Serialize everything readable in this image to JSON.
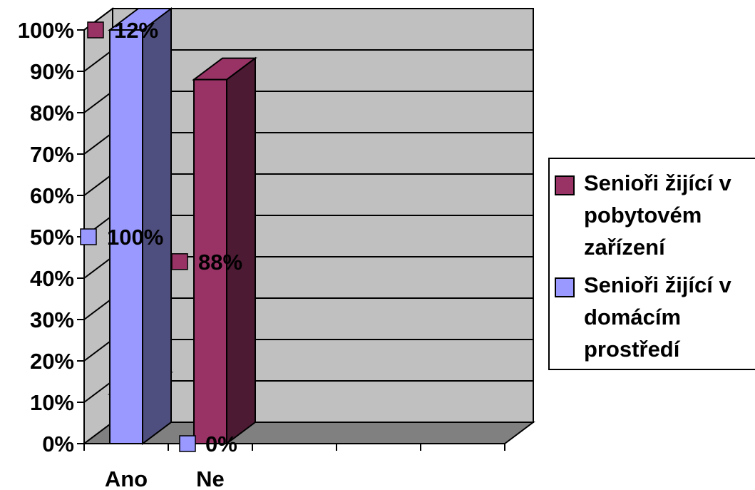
{
  "chart_data": {
    "type": "bar",
    "categories": [
      "Ano",
      "Ne"
    ],
    "series": [
      {
        "name": "Senioři žijící v domácím prostředí",
        "values": [
          100,
          0
        ],
        "color": "#9999ff",
        "side_color": "#4f4f7f"
      },
      {
        "name": "Senioři žijící v pobytovém zařízení",
        "values": [
          12,
          88
        ],
        "color": "#993366",
        "side_color": "#4c1a33"
      }
    ],
    "legend_lines": [
      [
        "Senioři žijící v",
        "pobytovém",
        "zařízení"
      ],
      [
        "Senioři žijící v",
        "domácím",
        "prostředí"
      ]
    ],
    "y_ticks": [
      "0%",
      "10%",
      "20%",
      "30%",
      "40%",
      "50%",
      "60%",
      "70%",
      "80%",
      "90%",
      "100%"
    ],
    "ylim": [
      0,
      100
    ],
    "data_labels": {
      "Ano": [
        "100%",
        "12%"
      ],
      "Ne": [
        "0%",
        "88%"
      ]
    },
    "title": "",
    "xlabel": "",
    "ylabel": "",
    "grid": true,
    "legend": "right",
    "colors": {
      "wall": "#c0c0c0",
      "floor": "#808080"
    }
  }
}
